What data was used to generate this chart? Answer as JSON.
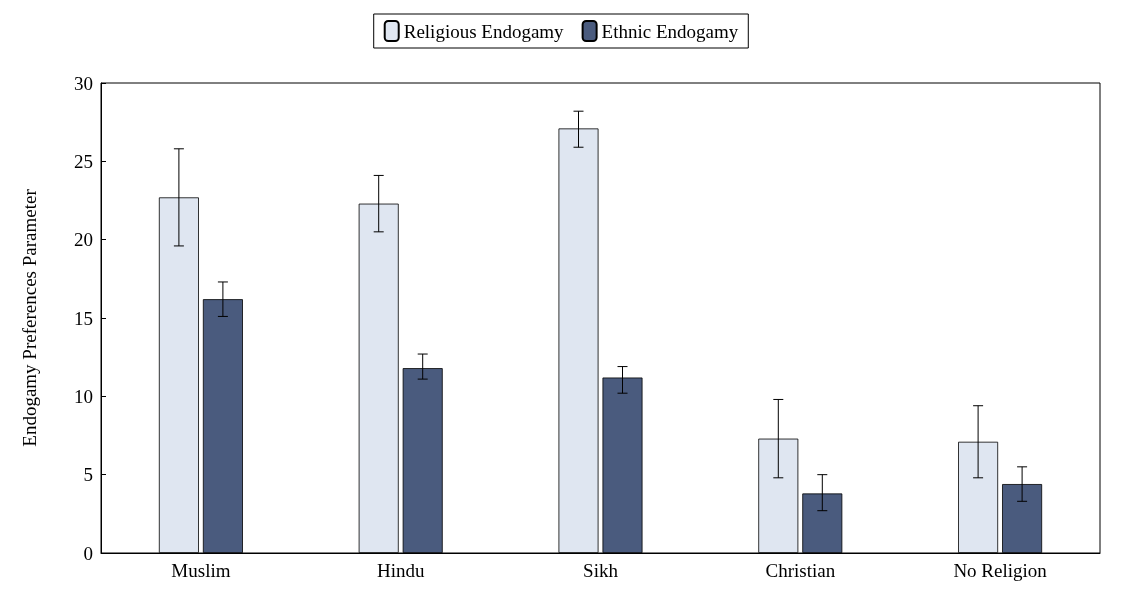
{
  "chart_data": {
    "type": "bar",
    "ylabel": "Endogamy Preferences Parameter",
    "categories": [
      "Muslim",
      "Hindu",
      "Sikh",
      "Christian",
      "No Religion"
    ],
    "series": [
      {
        "name": "Religious Endogamy",
        "color": "#dfe6f1",
        "values": [
          22.7,
          22.3,
          27.1,
          7.3,
          7.1
        ],
        "errors": [
          [
            19.6,
            25.8
          ],
          [
            20.5,
            24.1
          ],
          [
            25.9,
            28.2
          ],
          [
            4.8,
            9.8
          ],
          [
            4.8,
            9.4
          ]
        ]
      },
      {
        "name": "Ethnic Endogamy",
        "color": "#4a5b7e",
        "values": [
          16.2,
          11.8,
          11.2,
          3.8,
          4.4
        ],
        "errors": [
          [
            15.1,
            17.3
          ],
          [
            11.1,
            12.7
          ],
          [
            10.2,
            11.9
          ],
          [
            2.7,
            5.0
          ],
          [
            3.3,
            5.5
          ]
        ]
      }
    ],
    "ylim": [
      0,
      30
    ],
    "yticks": [
      0,
      5,
      10,
      15,
      20,
      25,
      30
    ],
    "grid": false,
    "legend": "top"
  }
}
